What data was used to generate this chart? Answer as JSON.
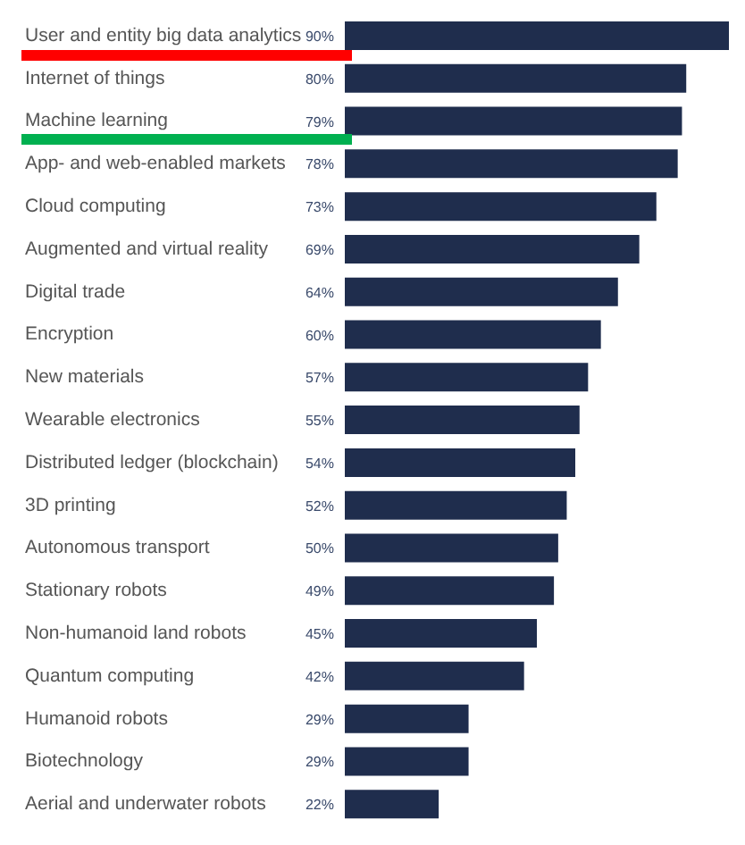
{
  "chart_data": {
    "type": "bar",
    "orientation": "horizontal",
    "categories": [
      "User and entity big data analytics",
      "Internet of things",
      "Machine learning",
      "App- and web-enabled markets",
      "Cloud computing",
      "Augmented and virtual reality",
      "Digital trade",
      "Encryption",
      "New materials",
      "Wearable electronics",
      "Distributed ledger (blockchain)",
      "3D printing",
      "Autonomous transport",
      "Stationary robots",
      "Non-humanoid land robots",
      "Quantum computing",
      "Humanoid robots",
      "Biotechnology",
      "Aerial and underwater robots"
    ],
    "values": [
      90,
      80,
      79,
      78,
      73,
      69,
      64,
      60,
      57,
      55,
      54,
      52,
      50,
      49,
      45,
      42,
      29,
      29,
      22
    ],
    "value_labels": [
      "90%",
      "80%",
      "79%",
      "78%",
      "73%",
      "69%",
      "64%",
      "60%",
      "57%",
      "55%",
      "54%",
      "52%",
      "50%",
      "49%",
      "45%",
      "42%",
      "29%",
      "29%",
      "22%"
    ],
    "color": "#1f2d4d"
  }
}
